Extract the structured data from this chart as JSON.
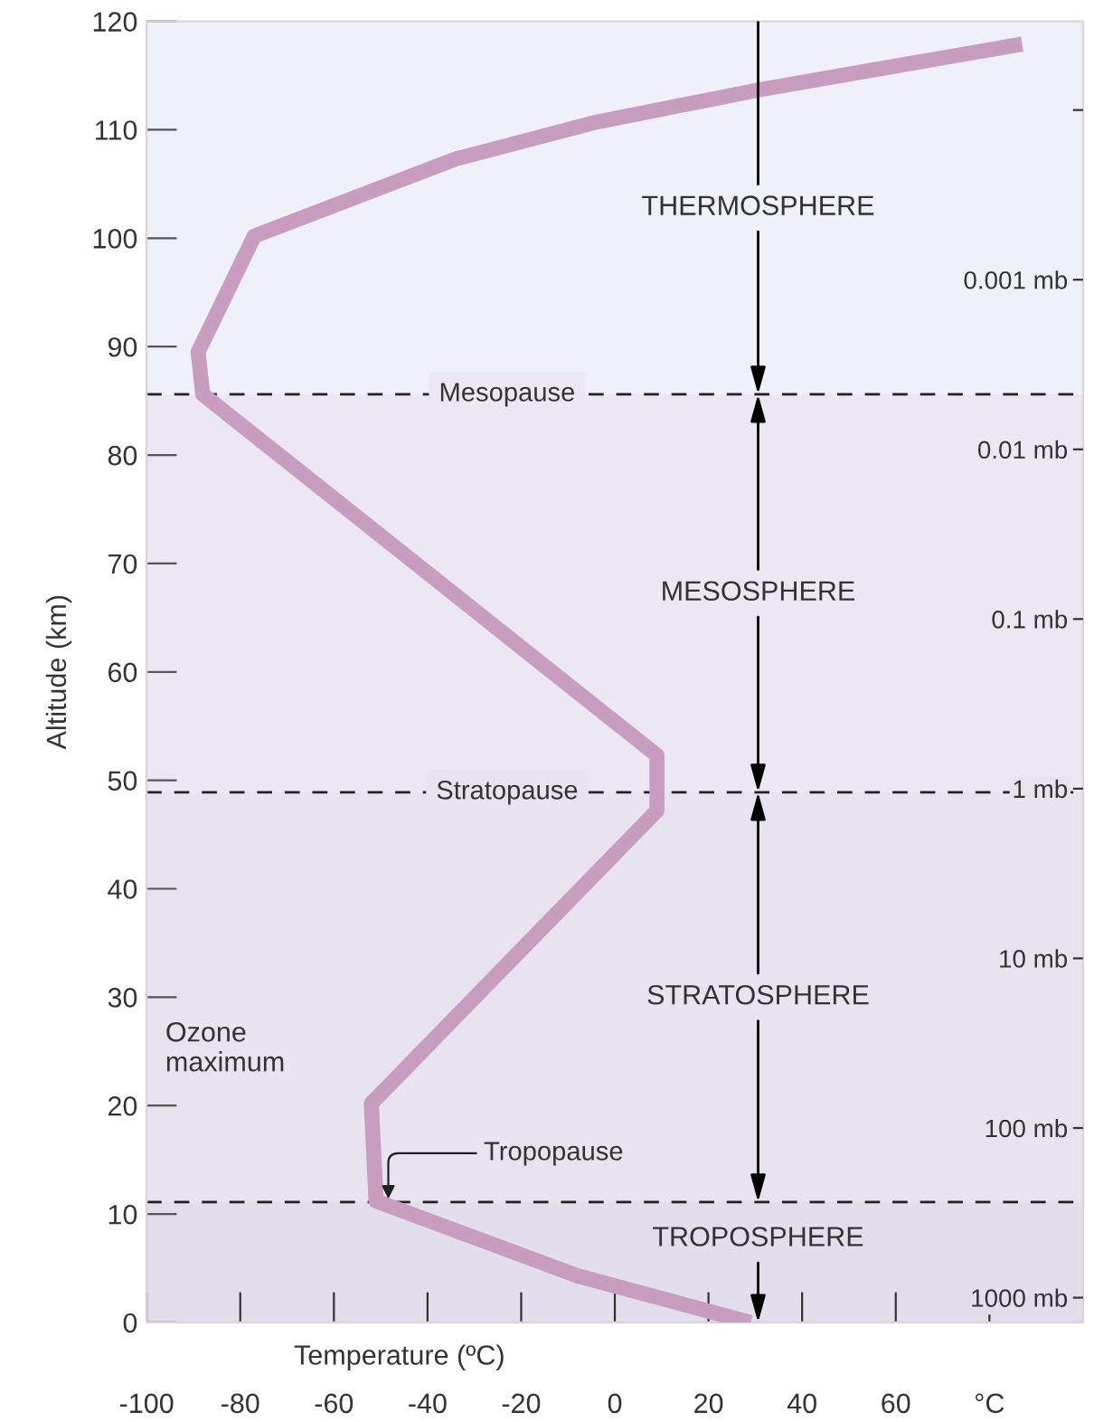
{
  "chart_data": {
    "type": "line",
    "xlabel": "Temperature (ºC)",
    "ylabel": "Altitude (km)",
    "x": [
      29,
      -8,
      -51,
      -52,
      9,
      9,
      -88,
      -89,
      -77,
      -34,
      -4,
      31,
      87
    ],
    "series": [
      {
        "color": "#c89dbf",
        "values": [
          0,
          4.3,
          11.2,
          20.2,
          47.2,
          52.3,
          85.6,
          89.5,
          100.2,
          107.3,
          110.7,
          113.7,
          117.9
        ]
      }
    ],
    "xlim": [
      -100,
      100
    ],
    "xticks": [
      -100,
      -80,
      -60,
      -40,
      -20,
      0,
      20,
      40,
      60,
      {
        "value": 80,
        "label": "°C"
      }
    ],
    "ylim": [
      0,
      120
    ],
    "yticks": [
      0,
      10,
      20,
      30,
      40,
      50,
      60,
      70,
      80,
      90,
      100,
      110,
      120
    ],
    "log": "y2",
    "y2lim": [
      1400,
      3e-05
    ],
    "y2ticks": [
      {
        "value": 1000,
        "label": "1000 mb"
      },
      {
        "value": 100,
        "label": "100 mb"
      },
      {
        "value": 10,
        "label": "10 mb"
      },
      {
        "value": 1,
        "label": "1 mb"
      },
      {
        "value": 0.1,
        "label": "0.1 mb"
      },
      {
        "value": 0.01,
        "label": "0.01 mb"
      },
      {
        "value": 0.001,
        "label": "0.001 mb"
      },
      {
        "value": 0.0001,
        "label": null
      }
    ],
    "ref_lines": [
      {
        "axis": "y",
        "value": 85.6,
        "label": "Mesopause",
        "line_style": "dashed",
        "color": "#222222"
      },
      {
        "axis": "y",
        "value": 48.9,
        "label": "Stratopause",
        "line_style": "dashed",
        "color": "#222222"
      },
      {
        "axis": "y",
        "value": 11.1,
        "label": "Tropopause",
        "line_style": "dashed",
        "color": "#222222"
      }
    ],
    "bands": [
      {
        "axis": "y",
        "from": 85.6,
        "to": 120,
        "label": "THERMOSPHERE",
        "color": "#f0f1f8"
      },
      {
        "axis": "y",
        "from": 48.9,
        "to": 85.6,
        "label": "MESOSPHERE",
        "color": "#ebe8f3"
      },
      {
        "axis": "y",
        "from": 11.1,
        "to": 48.9,
        "label": "STRATOSPHERE",
        "color": "#e7e3ef"
      },
      {
        "axis": "y",
        "from": 0,
        "to": 11.1,
        "label": "TROPOSPHERE",
        "color": "#e3deeb"
      }
    ],
    "annotations": [
      "Ozone\nmaximum"
    ],
    "grid": false,
    "legend": false,
    "marker": "none",
    "line_style": "solid"
  }
}
